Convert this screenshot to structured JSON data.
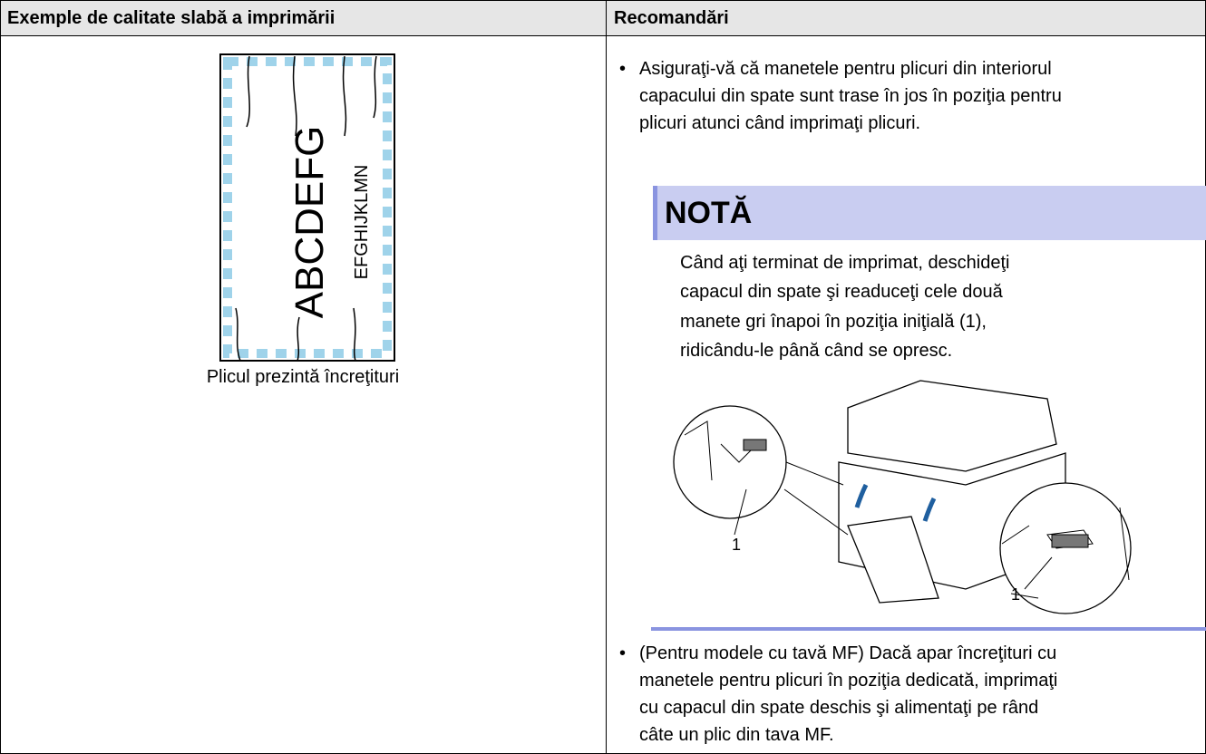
{
  "table": {
    "header": [
      "Exemple de calitate slabă a imprimării",
      "Recomandări"
    ],
    "example": {
      "illustration_text": [
        "ABCDEFG",
        "EFGHIJKLMN"
      ],
      "caption": "Plicul prezintă încreţituri"
    },
    "recommendations": {
      "bullet_1": [
        "Asiguraţi-vă că manetele pentru plicuri din interiorul",
        "capacului din spate sunt trase în jos în poziţia pentru",
        "plicuri atunci când imprimaţi plicuri."
      ],
      "note": {
        "title": "NOTĂ",
        "lines": [
          "Când aţi terminat de imprimat, deschideţi",
          "capacul din spate şi readuceţi cele două",
          "manete gri înapoi în poziţia iniţială (1),",
          "ridicându-le până când se opresc."
        ],
        "callouts": [
          "1",
          "1"
        ]
      },
      "bullet_2": [
        "(Pentru modele cu tavă MF) Dacă apar încreţituri cu",
        "manetele pentru plicuri în poziţia dedicată, imprimaţi",
        "cu capacul din spate deschis şi alimentaţi pe rând",
        "câte un plic din tava MF."
      ]
    }
  }
}
